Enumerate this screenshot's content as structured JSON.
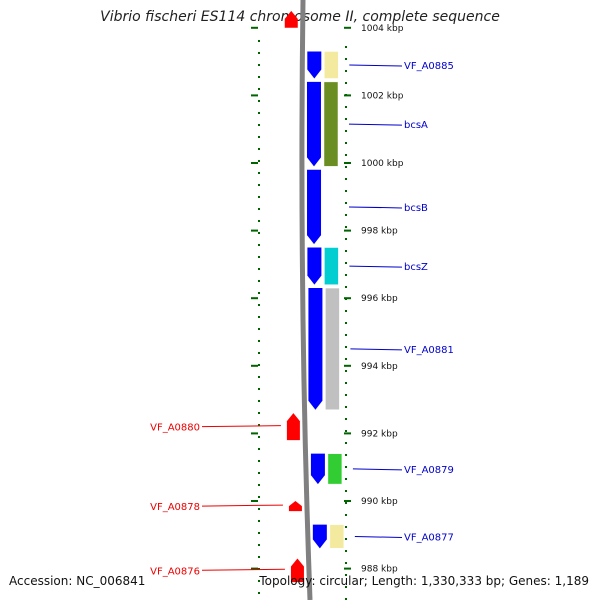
{
  "title": "Vibrio fischeri ES114 chromosome II, complete sequence",
  "footer": {
    "accession": "Accession: NC_006841",
    "summary": "Topology: circular; Length: 1,330,333 bp; Genes: 1,189"
  },
  "colors": {
    "forward_gene": "#0000ff",
    "reverse_gene": "#ff0000",
    "tick": "#006400",
    "backbone": "#808080",
    "forward_label": "#0000cc",
    "reverse_label": "#ee0000"
  },
  "scale": {
    "unit": "kbp",
    "ticks": [
      {
        "value": 1004,
        "label": "1004 kbp"
      },
      {
        "value": 1002,
        "label": "1002 kbp"
      },
      {
        "value": 1000,
        "label": "1000 kbp"
      },
      {
        "value": 998,
        "label": "998 kbp"
      },
      {
        "value": 996,
        "label": "996 kbp"
      },
      {
        "value": 994,
        "label": "994 kbp"
      },
      {
        "value": 992,
        "label": "992 kbp"
      },
      {
        "value": 990,
        "label": "990 kbp"
      },
      {
        "value": 988,
        "label": "988 kbp"
      }
    ]
  },
  "genes": [
    {
      "label": "VF_A0885",
      "strand": "forward",
      "start_kbp": 1002.5,
      "end_kbp": 1003.3,
      "cog_color": "#f3eaa0"
    },
    {
      "label": "bcsA",
      "strand": "forward",
      "start_kbp": 999.9,
      "end_kbp": 1002.4,
      "cog_color": "#6b8e23"
    },
    {
      "label": "bcsB",
      "strand": "forward",
      "start_kbp": 997.6,
      "end_kbp": 999.8,
      "cog_color": ""
    },
    {
      "label": "bcsZ",
      "strand": "forward",
      "start_kbp": 996.4,
      "end_kbp": 997.5,
      "cog_color": "#00ced1"
    },
    {
      "label": "VF_A0881",
      "strand": "forward",
      "start_kbp": 992.7,
      "end_kbp": 996.3,
      "cog_color": "#c0c0c0"
    },
    {
      "label": "VF_A0880",
      "strand": "reverse",
      "start_kbp": 991.8,
      "end_kbp": 992.6,
      "cog_color": ""
    },
    {
      "label": "VF_A0879",
      "strand": "forward",
      "start_kbp": 990.5,
      "end_kbp": 991.4,
      "cog_color": "#32cd32"
    },
    {
      "label": "VF_A0878",
      "strand": "reverse",
      "start_kbp": 989.7,
      "end_kbp": 990.0,
      "cog_color": ""
    },
    {
      "label": "VF_A0877",
      "strand": "forward",
      "start_kbp": 988.6,
      "end_kbp": 989.3,
      "cog_color": "#f3eaa0"
    },
    {
      "label": "VF_A0876",
      "strand": "reverse",
      "start_kbp": 987.6,
      "end_kbp": 988.3,
      "cog_color": ""
    },
    {
      "label": "",
      "strand": "reverse",
      "start_kbp": 1004.0,
      "end_kbp": 1004.5,
      "cog_color": ""
    }
  ]
}
